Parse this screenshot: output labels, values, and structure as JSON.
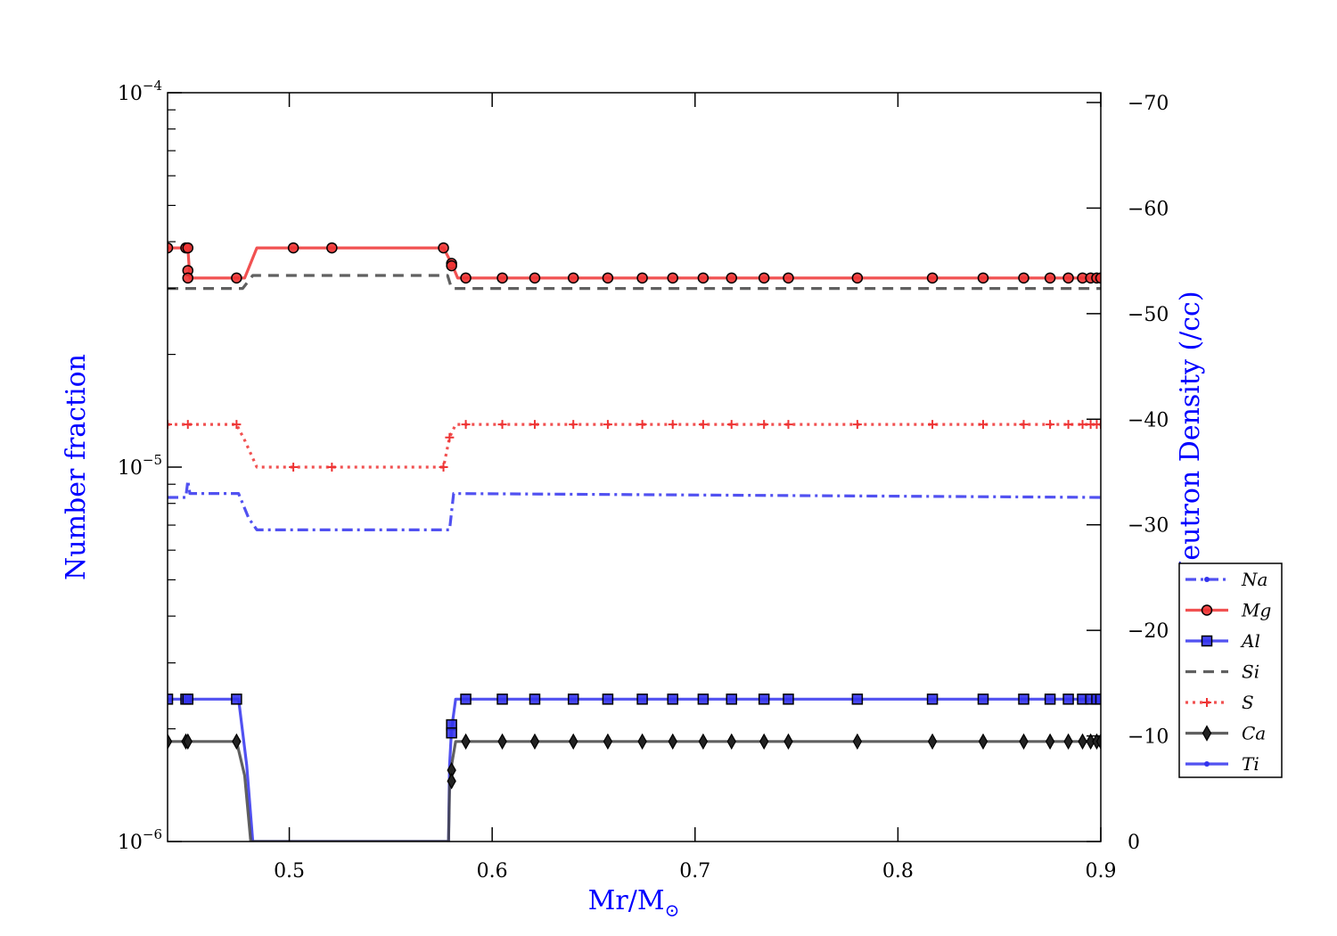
{
  "chart_data": {
    "type": "line",
    "xlabel": "Mr/M",
    "xlabel_sub": "⊙",
    "ylabel": "Number fraction",
    "y2label": "Log Neutron Density (/cc)",
    "xlim": [
      0.44,
      0.9
    ],
    "ylim": [
      1e-06,
      0.0001
    ],
    "yscale": "log",
    "y2lim": [
      0,
      -70
    ],
    "x_ticks": [
      0.5,
      0.6,
      0.7,
      0.8,
      0.9
    ],
    "x_tick_labels": [
      "0.5",
      "0.6",
      "0.7",
      "0.8",
      "0.9"
    ],
    "y_ticks": [
      1e-06,
      1e-05,
      0.0001
    ],
    "y_tick_labels": [
      {
        "base": "10",
        "exp": "−6"
      },
      {
        "base": "10",
        "exp": "−5"
      },
      {
        "base": "10",
        "exp": "−4"
      }
    ],
    "y2_ticks": [
      0,
      -10,
      -20,
      -30,
      -40,
      -50,
      -60,
      -70
    ],
    "y2_tick_labels": [
      "0",
      "−10",
      "−20",
      "−30",
      "−40",
      "−50",
      "−60",
      "−70"
    ],
    "legend_position": "right",
    "colors": {
      "axis_label": "#0000ff",
      "red": "#ee3333",
      "blue": "#3333ee",
      "gray": "#444444"
    },
    "series": [
      {
        "name": "Na",
        "color": "#3333ee",
        "dash": "dashdot",
        "marker": "point",
        "x": [
          0.44,
          0.449,
          0.45,
          0.451,
          0.455,
          0.475,
          0.48,
          0.484,
          0.577,
          0.579,
          0.581,
          0.9
        ],
        "y": [
          8.3e-06,
          8.3e-06,
          9.2e-06,
          8.5e-06,
          8.5e-06,
          8.5e-06,
          7.3e-06,
          6.8e-06,
          6.8e-06,
          6.8e-06,
          8.5e-06,
          8.3e-06
        ],
        "mx": [],
        "my": []
      },
      {
        "name": "Mg",
        "color": "#ee3333",
        "dash": "solid",
        "marker": "circle",
        "x": [
          0.44,
          0.45,
          0.451,
          0.474,
          0.478,
          0.484,
          0.576,
          0.58,
          0.583,
          0.9
        ],
        "y": [
          3.85e-05,
          3.85e-05,
          3.2e-05,
          3.2e-05,
          3.2e-05,
          3.85e-05,
          3.85e-05,
          3.5e-05,
          3.2e-05,
          3.2e-05
        ],
        "mx": [
          0.44,
          0.449,
          0.45,
          0.45,
          0.45,
          0.474,
          0.502,
          0.521,
          0.576,
          0.58,
          0.58,
          0.587,
          0.605,
          0.621,
          0.64,
          0.657,
          0.674,
          0.689,
          0.704,
          0.718,
          0.734,
          0.746,
          0.78,
          0.817,
          0.842,
          0.862,
          0.875,
          0.884,
          0.891,
          0.895,
          0.898,
          0.9
        ],
        "my": [
          3.85e-05,
          3.85e-05,
          3.85e-05,
          3.35e-05,
          3.2e-05,
          3.2e-05,
          3.85e-05,
          3.85e-05,
          3.85e-05,
          3.5e-05,
          3.45e-05,
          3.2e-05,
          3.2e-05,
          3.2e-05,
          3.2e-05,
          3.2e-05,
          3.2e-05,
          3.2e-05,
          3.2e-05,
          3.2e-05,
          3.2e-05,
          3.2e-05,
          3.2e-05,
          3.2e-05,
          3.2e-05,
          3.2e-05,
          3.2e-05,
          3.2e-05,
          3.2e-05,
          3.2e-05,
          3.2e-05,
          3.2e-05
        ]
      },
      {
        "name": "Al",
        "color": "#3333ee",
        "dash": "solid",
        "marker": "square",
        "x": [
          0.44,
          0.475,
          0.479,
          0.482,
          0.4825,
          0.5785,
          0.579,
          0.58,
          0.582,
          0.9
        ],
        "y": [
          2.4e-06,
          2.4e-06,
          1.6e-06,
          1e-06,
          1e-06,
          1e-06,
          1.6e-06,
          2e-06,
          2.4e-06,
          2.4e-06
        ],
        "mx": [
          0.44,
          0.449,
          0.45,
          0.474,
          0.58,
          0.58,
          0.587,
          0.605,
          0.621,
          0.64,
          0.657,
          0.674,
          0.689,
          0.704,
          0.718,
          0.734,
          0.746,
          0.78,
          0.817,
          0.842,
          0.862,
          0.875,
          0.884,
          0.891,
          0.895,
          0.898,
          0.9
        ],
        "my": [
          2.4e-06,
          2.4e-06,
          2.4e-06,
          2.4e-06,
          2.05e-06,
          1.95e-06,
          2.4e-06,
          2.4e-06,
          2.4e-06,
          2.4e-06,
          2.4e-06,
          2.4e-06,
          2.4e-06,
          2.4e-06,
          2.4e-06,
          2.4e-06,
          2.4e-06,
          2.4e-06,
          2.4e-06,
          2.4e-06,
          2.4e-06,
          2.4e-06,
          2.4e-06,
          2.4e-06,
          2.4e-06,
          2.4e-06,
          2.4e-06
        ]
      },
      {
        "name": "Si",
        "color": "#444444",
        "dash": "dashed",
        "marker": "none",
        "x": [
          0.44,
          0.477,
          0.482,
          0.578,
          0.58,
          0.9
        ],
        "y": [
          3e-05,
          3e-05,
          3.25e-05,
          3.25e-05,
          3e-05,
          3e-05
        ],
        "mx": [],
        "my": []
      },
      {
        "name": "S",
        "color": "#ee3333",
        "dash": "dotted",
        "marker": "plus",
        "x": [
          0.44,
          0.474,
          0.478,
          0.484,
          0.576,
          0.579,
          0.582,
          0.9
        ],
        "y": [
          1.3e-05,
          1.3e-05,
          1.18e-05,
          1e-05,
          1e-05,
          1.2e-05,
          1.3e-05,
          1.3e-05
        ],
        "mx": [
          0.44,
          0.45,
          0.474,
          0.502,
          0.521,
          0.576,
          0.579,
          0.587,
          0.605,
          0.621,
          0.64,
          0.657,
          0.674,
          0.689,
          0.704,
          0.718,
          0.734,
          0.746,
          0.78,
          0.817,
          0.842,
          0.862,
          0.875,
          0.884,
          0.891,
          0.895,
          0.898,
          0.9
        ],
        "my": [
          1.3e-05,
          1.3e-05,
          1.3e-05,
          1e-05,
          1e-05,
          1e-05,
          1.2e-05,
          1.3e-05,
          1.3e-05,
          1.3e-05,
          1.3e-05,
          1.3e-05,
          1.3e-05,
          1.3e-05,
          1.3e-05,
          1.3e-05,
          1.3e-05,
          1.3e-05,
          1.3e-05,
          1.3e-05,
          1.3e-05,
          1.3e-05,
          1.3e-05,
          1.3e-05,
          1.3e-05,
          1.3e-05,
          1.3e-05,
          1.3e-05
        ]
      },
      {
        "name": "Ca",
        "color": "#444444",
        "dash": "solid",
        "marker": "diamond",
        "x": [
          0.44,
          0.474,
          0.478,
          0.481,
          0.4815,
          0.5785,
          0.579,
          0.58,
          0.582,
          0.9
        ],
        "y": [
          1.85e-06,
          1.85e-06,
          1.5e-06,
          1e-06,
          1e-06,
          1e-06,
          1.4e-06,
          1.6e-06,
          1.85e-06,
          1.85e-06
        ],
        "mx": [
          0.44,
          0.449,
          0.45,
          0.474,
          0.58,
          0.58,
          0.587,
          0.605,
          0.621,
          0.64,
          0.657,
          0.674,
          0.689,
          0.704,
          0.718,
          0.734,
          0.746,
          0.78,
          0.817,
          0.842,
          0.862,
          0.875,
          0.884,
          0.891,
          0.895,
          0.898,
          0.9
        ],
        "my": [
          1.85e-06,
          1.85e-06,
          1.85e-06,
          1.85e-06,
          1.55e-06,
          1.45e-06,
          1.85e-06,
          1.85e-06,
          1.85e-06,
          1.85e-06,
          1.85e-06,
          1.85e-06,
          1.85e-06,
          1.85e-06,
          1.85e-06,
          1.85e-06,
          1.85e-06,
          1.85e-06,
          1.85e-06,
          1.85e-06,
          1.85e-06,
          1.85e-06,
          1.85e-06,
          1.85e-06,
          1.85e-06,
          1.85e-06,
          1.85e-06
        ]
      },
      {
        "name": "Ti",
        "color": "#3333ee",
        "dash": "solid",
        "marker": "point",
        "x": [],
        "y": [],
        "mx": [],
        "my": []
      }
    ]
  }
}
